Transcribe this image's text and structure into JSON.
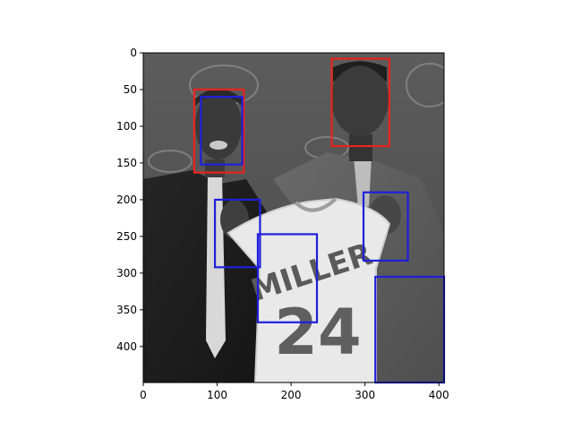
{
  "chart_data": {
    "type": "image_with_boxes",
    "image": {
      "description_name": "grayscale-photo-two-men-holding-jersey",
      "width": 407,
      "height": 449
    },
    "x_ticks": [
      0,
      100,
      200,
      300,
      400
    ],
    "y_ticks": [
      0,
      50,
      100,
      150,
      200,
      250,
      300,
      350,
      400
    ],
    "jersey_text": {
      "name": "MILLER",
      "number": "24"
    },
    "boxes": [
      {
        "label": "face-left-red",
        "color": "#e8231f",
        "x0": 69,
        "y0": 50,
        "x1": 136,
        "y1": 163
      },
      {
        "label": "face-right-red",
        "color": "#e8231f",
        "x0": 255,
        "y0": 8,
        "x1": 333,
        "y1": 127
      },
      {
        "label": "face-left-blue",
        "color": "#1f1fdc",
        "x0": 78,
        "y0": 60,
        "x1": 134,
        "y1": 152
      },
      {
        "label": "hand-left-blue",
        "color": "#1f1fdc",
        "x0": 97,
        "y0": 200,
        "x1": 158,
        "y1": 292
      },
      {
        "label": "jersey-blue",
        "color": "#1f1fdc",
        "x0": 155,
        "y0": 247,
        "x1": 235,
        "y1": 367
      },
      {
        "label": "hand-right-blue",
        "color": "#1f1fdc",
        "x0": 298,
        "y0": 190,
        "x1": 358,
        "y1": 283
      },
      {
        "label": "corner-blue",
        "color": "#1f1fdc",
        "x0": 314,
        "y0": 305,
        "x1": 407,
        "y1": 449
      }
    ]
  }
}
